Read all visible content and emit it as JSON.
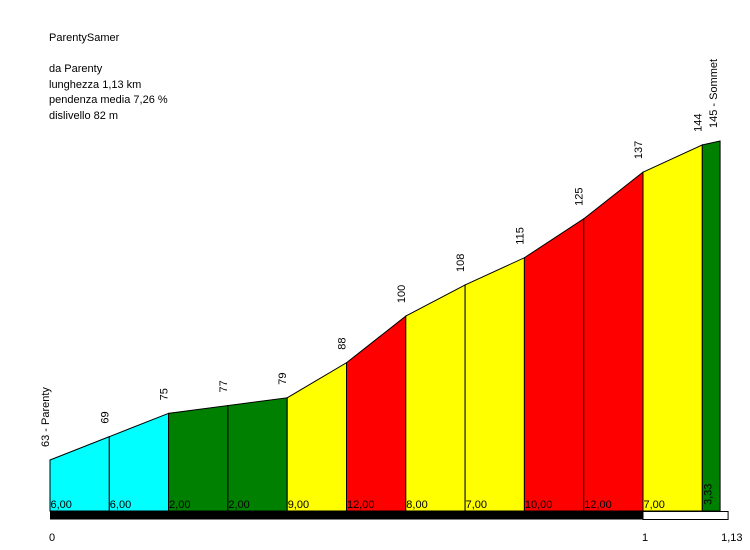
{
  "info": {
    "title": "ParentySamer",
    "from": "da Parenty",
    "length": "lunghezza 1,13 km",
    "gradient": "pendenza media 7,26 %",
    "climb": "dislivello 82 m"
  },
  "chart_data": {
    "type": "area",
    "title": "ParentySamer",
    "x_unit": "km",
    "y_unit": "m",
    "points": [
      {
        "x": 0.0,
        "y": 63,
        "label": "63 - Parenty"
      },
      {
        "x": 0.1,
        "y": 69,
        "label": "69"
      },
      {
        "x": 0.2,
        "y": 75,
        "label": "75"
      },
      {
        "x": 0.3,
        "y": 77,
        "label": "77"
      },
      {
        "x": 0.4,
        "y": 79,
        "label": "79"
      },
      {
        "x": 0.5,
        "y": 88,
        "label": "88"
      },
      {
        "x": 0.6,
        "y": 100,
        "label": "100"
      },
      {
        "x": 0.7,
        "y": 108,
        "label": "108"
      },
      {
        "x": 0.8,
        "y": 115,
        "label": "115"
      },
      {
        "x": 0.9,
        "y": 125,
        "label": "125"
      },
      {
        "x": 1.0,
        "y": 137,
        "label": "137"
      },
      {
        "x": 1.1,
        "y": 144,
        "label": "144"
      },
      {
        "x": 1.13,
        "y": 145,
        "label": "145 - Sommet"
      }
    ],
    "segments": [
      {
        "gradient": "6,00",
        "color": "#00ffff"
      },
      {
        "gradient": "6,00",
        "color": "#00ffff"
      },
      {
        "gradient": "2,00",
        "color": "#008000"
      },
      {
        "gradient": "2,00",
        "color": "#008000"
      },
      {
        "gradient": "9,00",
        "color": "#ffff00"
      },
      {
        "gradient": "12,00",
        "color": "#ff0000"
      },
      {
        "gradient": "8,00",
        "color": "#ffff00"
      },
      {
        "gradient": "7,00",
        "color": "#ffff00"
      },
      {
        "gradient": "10,00",
        "color": "#ff0000"
      },
      {
        "gradient": "12,00",
        "color": "#ff0000"
      },
      {
        "gradient": "7,00",
        "color": "#ffff00"
      },
      {
        "gradient": "3,33",
        "color": "#008000"
      }
    ],
    "x_ticks": [
      {
        "x": 0,
        "label": "0"
      },
      {
        "x": 1,
        "label": "1"
      },
      {
        "x": 1.13,
        "label": "1,13"
      }
    ],
    "km_bar": [
      {
        "from": 0,
        "to": 1,
        "color": "#000000"
      },
      {
        "from": 1,
        "to": 1.13,
        "color": "#ffffff"
      }
    ]
  }
}
